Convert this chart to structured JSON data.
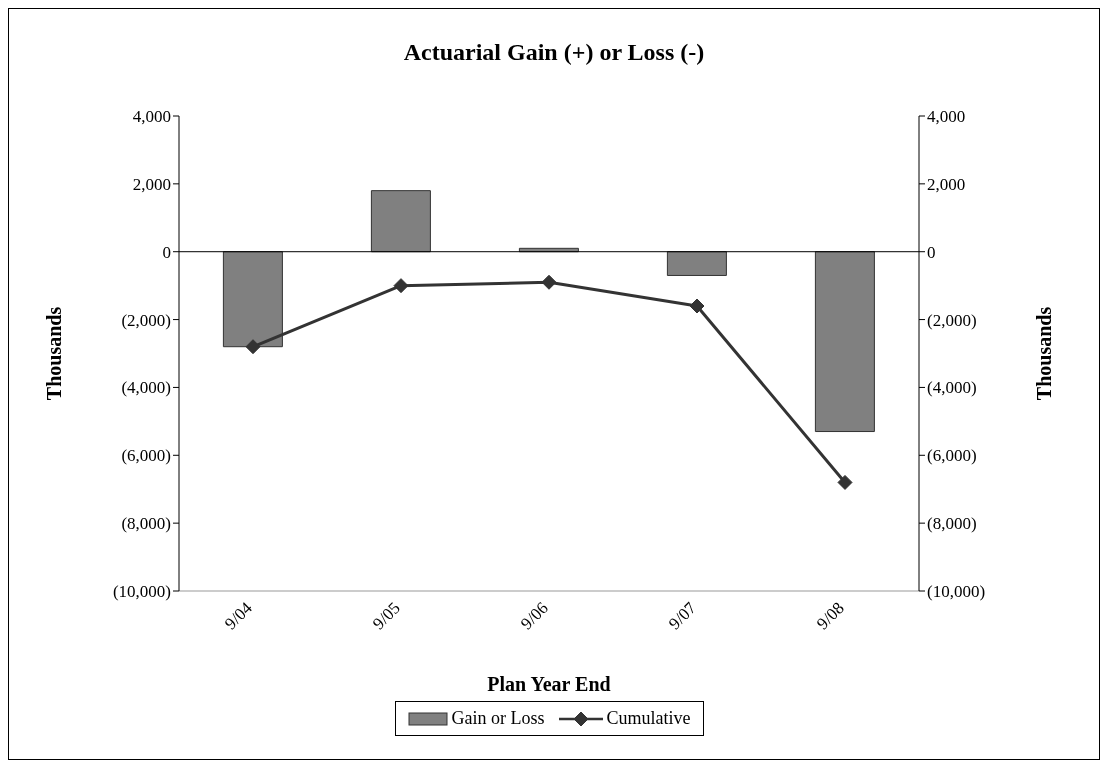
{
  "chart_data": {
    "type": "bar",
    "title": "Actuarial Gain (+) or Loss (-)",
    "xlabel": "Plan Year End",
    "ylabel": "Thousands",
    "y2label": "Thousands",
    "categories": [
      "9/04",
      "9/05",
      "9/06",
      "9/07",
      "9/08"
    ],
    "series": [
      {
        "name": "Gain or Loss",
        "color": "#808080",
        "values": [
          -2800,
          1800,
          100,
          -700,
          -5300
        ]
      },
      {
        "name": "Cumulative",
        "type": "line",
        "color": "#333333",
        "values": [
          -2800,
          -1000,
          -900,
          -1600,
          -6800
        ]
      }
    ],
    "ylim": [
      -10000,
      4000
    ],
    "yticks": [
      {
        "value": -10000,
        "label": "(10,000)"
      },
      {
        "value": -8000,
        "label": "(8,000)"
      },
      {
        "value": -6000,
        "label": "(6,000)"
      },
      {
        "value": -4000,
        "label": "(4,000)"
      },
      {
        "value": -2000,
        "label": "(2,000)"
      },
      0,
      {
        "value": 2000,
        "label": "2,000"
      },
      {
        "value": 4000,
        "label": "4,000"
      }
    ],
    "y2lim": [
      -10000,
      4000
    ],
    "y2ticks": [
      {
        "value": -10000,
        "label": "(10,000)"
      },
      {
        "value": -8000,
        "label": "(8,000)"
      },
      {
        "value": -6000,
        "label": "(6,000)"
      },
      {
        "value": -4000,
        "label": "(4,000)"
      },
      {
        "value": -2000,
        "label": "(2,000)"
      },
      0,
      {
        "value": 2000,
        "label": "2,000"
      },
      {
        "value": 4000,
        "label": "4,000"
      }
    ],
    "ref_lines": [
      {
        "axis": "y",
        "value": 0,
        "color": "#000000"
      }
    ],
    "grid": false,
    "legend": "bottom",
    "marker": "diamond",
    "line_style": "solid"
  }
}
